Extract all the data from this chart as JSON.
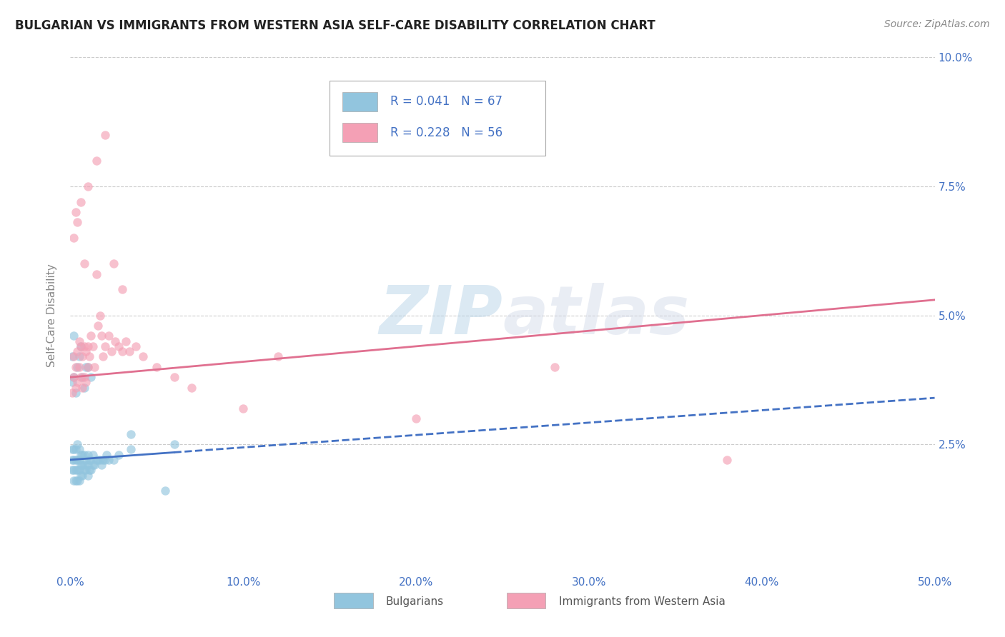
{
  "title": "BULGARIAN VS IMMIGRANTS FROM WESTERN ASIA SELF-CARE DISABILITY CORRELATION CHART",
  "source": "Source: ZipAtlas.com",
  "ylabel": "Self-Care Disability",
  "xlim": [
    0,
    0.5
  ],
  "ylim": [
    0,
    0.1
  ],
  "xticks": [
    0.0,
    0.1,
    0.2,
    0.3,
    0.4,
    0.5
  ],
  "yticks": [
    0.025,
    0.05,
    0.075,
    0.1
  ],
  "ytick_labels_right": [
    "2.5%",
    "5.0%",
    "7.5%",
    "10.0%"
  ],
  "xtick_labels": [
    "0.0%",
    "10.0%",
    "20.0%",
    "30.0%",
    "40.0%",
    "50.0%"
  ],
  "legend1_R": "0.041",
  "legend1_N": "67",
  "legend2_R": "0.228",
  "legend2_N": "56",
  "color_bulgarian": "#92c5de",
  "color_western_asia": "#f4a0b5",
  "color_blue_line": "#4472c4",
  "color_pink_line": "#e07090",
  "watermark_zip": "ZIP",
  "watermark_atlas": "atlas",
  "bulgarians_x": [
    0.001,
    0.001,
    0.001,
    0.002,
    0.002,
    0.002,
    0.002,
    0.003,
    0.003,
    0.003,
    0.003,
    0.004,
    0.004,
    0.004,
    0.004,
    0.005,
    0.005,
    0.005,
    0.005,
    0.006,
    0.006,
    0.006,
    0.007,
    0.007,
    0.007,
    0.008,
    0.008,
    0.008,
    0.009,
    0.009,
    0.01,
    0.01,
    0.01,
    0.011,
    0.011,
    0.012,
    0.012,
    0.013,
    0.013,
    0.014,
    0.015,
    0.016,
    0.017,
    0.018,
    0.019,
    0.02,
    0.021,
    0.022,
    0.025,
    0.028,
    0.001,
    0.001,
    0.002,
    0.002,
    0.003,
    0.004,
    0.005,
    0.006,
    0.007,
    0.008,
    0.009,
    0.01,
    0.012,
    0.035,
    0.035,
    0.06,
    0.055
  ],
  "bulgarians_y": [
    0.02,
    0.022,
    0.024,
    0.018,
    0.02,
    0.022,
    0.024,
    0.018,
    0.02,
    0.022,
    0.024,
    0.018,
    0.02,
    0.022,
    0.025,
    0.018,
    0.02,
    0.022,
    0.024,
    0.019,
    0.021,
    0.023,
    0.019,
    0.021,
    0.023,
    0.02,
    0.021,
    0.023,
    0.02,
    0.022,
    0.019,
    0.021,
    0.023,
    0.02,
    0.022,
    0.02,
    0.022,
    0.021,
    0.023,
    0.021,
    0.022,
    0.022,
    0.022,
    0.021,
    0.022,
    0.022,
    0.023,
    0.022,
    0.022,
    0.023,
    0.037,
    0.042,
    0.038,
    0.046,
    0.035,
    0.04,
    0.042,
    0.044,
    0.038,
    0.036,
    0.04,
    0.04,
    0.038,
    0.024,
    0.027,
    0.025,
    0.016
  ],
  "western_asia_x": [
    0.001,
    0.002,
    0.002,
    0.003,
    0.003,
    0.004,
    0.004,
    0.005,
    0.005,
    0.006,
    0.006,
    0.007,
    0.007,
    0.008,
    0.008,
    0.009,
    0.009,
    0.01,
    0.01,
    0.011,
    0.012,
    0.013,
    0.014,
    0.015,
    0.016,
    0.017,
    0.018,
    0.019,
    0.02,
    0.022,
    0.024,
    0.026,
    0.028,
    0.03,
    0.032,
    0.034,
    0.038,
    0.042,
    0.05,
    0.06,
    0.07,
    0.1,
    0.002,
    0.003,
    0.004,
    0.006,
    0.008,
    0.01,
    0.015,
    0.02,
    0.025,
    0.03,
    0.2,
    0.38,
    0.28,
    0.12
  ],
  "western_asia_y": [
    0.035,
    0.038,
    0.042,
    0.036,
    0.04,
    0.037,
    0.043,
    0.04,
    0.045,
    0.038,
    0.044,
    0.036,
    0.042,
    0.038,
    0.044,
    0.037,
    0.043,
    0.04,
    0.044,
    0.042,
    0.046,
    0.044,
    0.04,
    0.058,
    0.048,
    0.05,
    0.046,
    0.042,
    0.044,
    0.046,
    0.043,
    0.045,
    0.044,
    0.043,
    0.045,
    0.043,
    0.044,
    0.042,
    0.04,
    0.038,
    0.036,
    0.032,
    0.065,
    0.07,
    0.068,
    0.072,
    0.06,
    0.075,
    0.08,
    0.085,
    0.06,
    0.055,
    0.03,
    0.022,
    0.04,
    0.042
  ],
  "blue_line_x": [
    0.0,
    0.5
  ],
  "blue_line_y_start": 0.022,
  "blue_line_y_end": 0.034,
  "pink_line_x": [
    0.0,
    0.5
  ],
  "pink_line_y_start": 0.038,
  "pink_line_y_end": 0.053
}
